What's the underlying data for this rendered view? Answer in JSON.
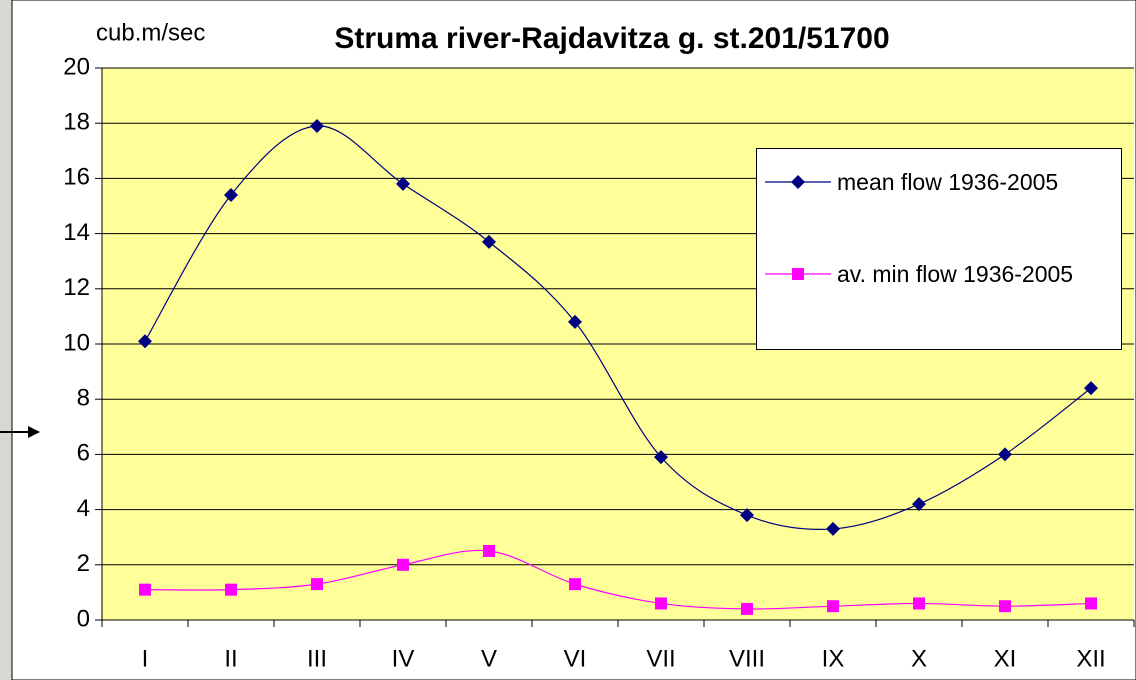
{
  "chart_data": {
    "type": "line",
    "title": "Struma river-Rajdavitza g. st.201/51700",
    "y_label": "cub.m/sec",
    "categories": [
      "I",
      "II",
      "III",
      "IV",
      "V",
      "VI",
      "VII",
      "VIII",
      "IX",
      "X",
      "XI",
      "XII"
    ],
    "series": [
      {
        "name": "mean flow 1936-2005",
        "color": "#000080",
        "marker": "diamond",
        "values": [
          10.1,
          15.4,
          17.9,
          15.8,
          13.7,
          10.8,
          5.9,
          3.8,
          3.3,
          4.2,
          6.0,
          8.4
        ]
      },
      {
        "name": "av. min flow 1936-2005",
        "color": "#ff00ff",
        "marker": "square",
        "values": [
          1.1,
          1.1,
          1.3,
          2.0,
          2.5,
          1.3,
          0.6,
          0.4,
          0.5,
          0.6,
          0.5,
          0.6
        ]
      }
    ],
    "ylim": [
      0,
      20
    ],
    "yticks": [
      0,
      2,
      4,
      6,
      8,
      10,
      12,
      14,
      16,
      18,
      20
    ],
    "grid": true,
    "legend": "right",
    "plot_background": "#ffff99"
  }
}
